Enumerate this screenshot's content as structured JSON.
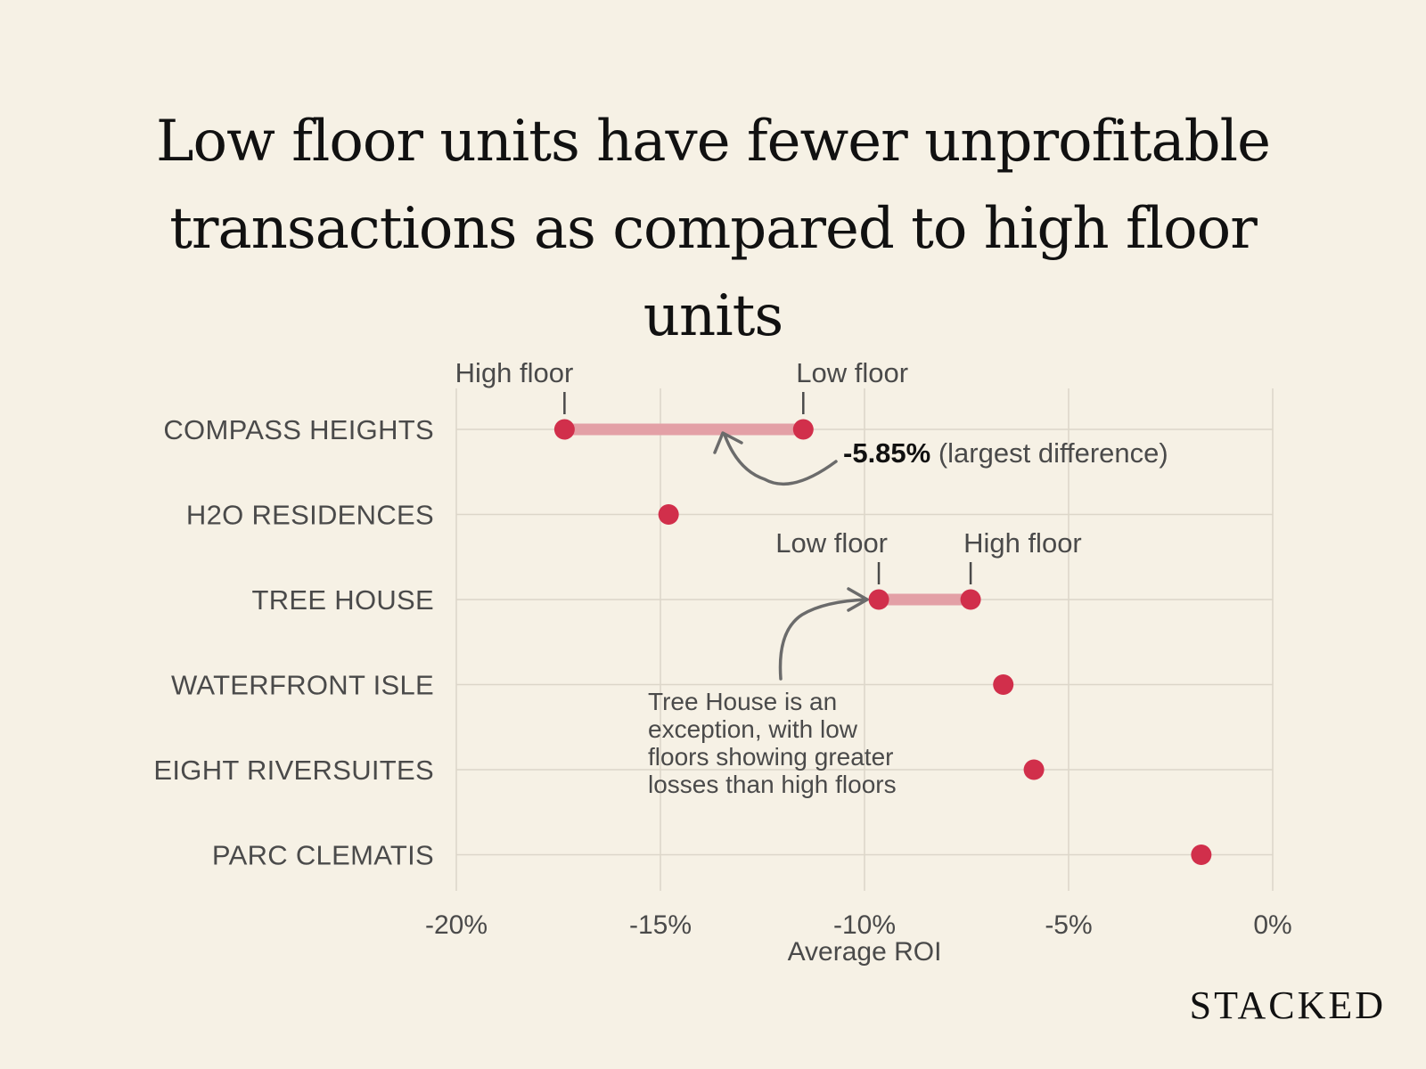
{
  "title_lines": [
    "Low floor units have fewer unprofitable",
    "transactions as compared to high floor",
    "units"
  ],
  "brand": "STACKED",
  "colors": {
    "background": "#f6f1e5",
    "dot": "#d12f4b",
    "connector": "#e3a0a6",
    "text": "#4a4a4a"
  },
  "chart_data": {
    "type": "dumbbell",
    "title": "Low floor units have fewer unprofitable transactions as compared to high floor units",
    "xlabel": "Average ROI",
    "xlim": [
      -20,
      0
    ],
    "xticks": [
      -20,
      -15,
      -10,
      -5,
      0
    ],
    "xtick_labels": [
      "-20%",
      "-15%",
      "-10%",
      "-5%",
      "0%"
    ],
    "grid": true,
    "categories": [
      "COMPASS HEIGHTS",
      "H2O RESIDENCES",
      "TREE HOUSE",
      "WATERFRONT ISLE",
      "EIGHT RIVERSUITES",
      "PARC CLEMATIS"
    ],
    "points": [
      {
        "category": "COMPASS HEIGHTS",
        "values": [
          -17.35,
          -11.5
        ],
        "labels": [
          "High floor",
          "Low floor"
        ]
      },
      {
        "category": "H2O RESIDENCES",
        "values": [
          -14.8
        ]
      },
      {
        "category": "TREE HOUSE",
        "values": [
          -9.65,
          -7.4
        ],
        "labels": [
          "Low floor",
          "High floor"
        ]
      },
      {
        "category": "WATERFRONT ISLE",
        "values": [
          -6.6
        ]
      },
      {
        "category": "EIGHT RIVERSUITES",
        "values": [
          -5.85
        ]
      },
      {
        "category": "PARC CLEMATIS",
        "values": [
          -1.75
        ]
      }
    ],
    "annotations": [
      {
        "bold": "-5.85%",
        "text": " (largest difference)"
      },
      {
        "lines": [
          "Tree House is an",
          "exception, with low",
          "floors showing greater",
          "losses than high floors"
        ]
      }
    ]
  }
}
